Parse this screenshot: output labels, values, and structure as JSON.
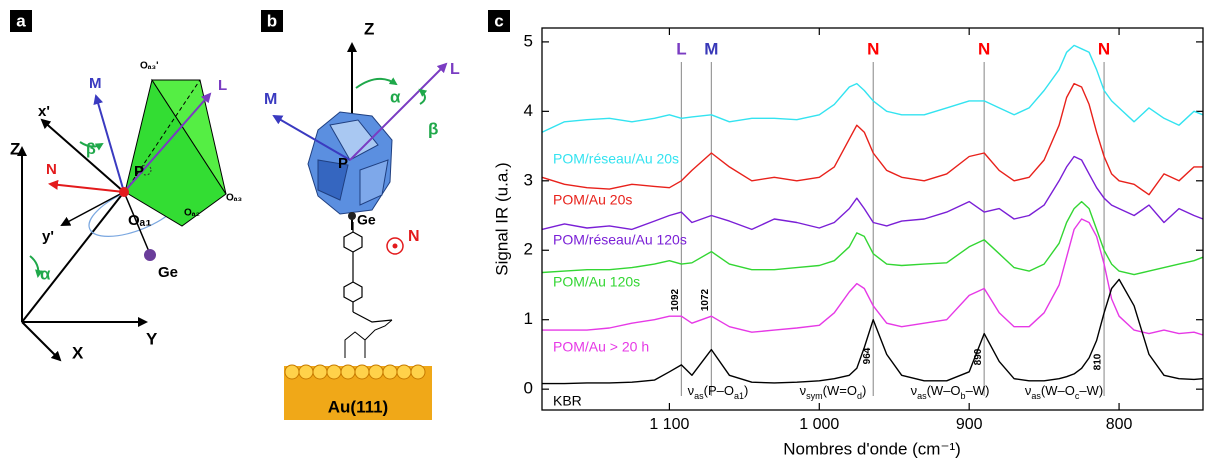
{
  "panel_labels": [
    "a",
    "b",
    "c"
  ],
  "diagram_a": [
    "x'",
    "M",
    "L",
    "Oₐ₃'",
    "β",
    "P",
    "Oₐ₃",
    "Oₐ₂",
    "Z",
    "N",
    "y'",
    "Oₐ₁",
    "α",
    "Ge",
    "Y",
    "X"
  ],
  "diagram_b": [
    "Z",
    "M",
    "α",
    "L",
    "β",
    "P",
    "Ge",
    "N",
    "Au(111)"
  ],
  "chart_data": {
    "type": "line",
    "xlabel": "Nombres d'onde (cm⁻¹)",
    "ylabel": "Signal IR (u.a.)",
    "xlim": [
      1185,
      744
    ],
    "ylim": [
      -0.3,
      5.2
    ],
    "xticks": [
      {
        "value": 1100,
        "label": "1 100"
      },
      {
        "value": 1000,
        "label": "1 000"
      },
      900,
      800
    ],
    "yticks": [
      0,
      1,
      2,
      3,
      4,
      5
    ],
    "x": [
      1185,
      1170,
      1155,
      1140,
      1125,
      1110,
      1100,
      1092,
      1085,
      1072,
      1060,
      1045,
      1030,
      1015,
      1000,
      990,
      980,
      975,
      970,
      964,
      955,
      945,
      930,
      915,
      900,
      890,
      880,
      870,
      860,
      850,
      840,
      835,
      830,
      825,
      820,
      815,
      810,
      805,
      800,
      790,
      780,
      770,
      760,
      750,
      744
    ],
    "series": [
      {
        "name": "POM/réseau/Au 20s",
        "color": "#33e3f0",
        "values": [
          3.7,
          3.85,
          3.88,
          3.9,
          3.85,
          3.9,
          3.95,
          3.9,
          3.92,
          3.95,
          3.85,
          3.9,
          3.9,
          3.88,
          3.95,
          4.1,
          4.35,
          4.4,
          4.3,
          4.15,
          4.0,
          3.95,
          3.95,
          4.05,
          4.15,
          4.15,
          4.05,
          3.95,
          4.05,
          4.3,
          4.6,
          4.85,
          4.95,
          4.9,
          4.85,
          4.6,
          4.3,
          4.15,
          4.05,
          3.85,
          4.05,
          3.9,
          3.8,
          4.0,
          3.95
        ]
      },
      {
        "name": "POM/Au 20s",
        "color": "#e8211b",
        "values": [
          3.05,
          2.95,
          2.9,
          2.88,
          2.95,
          2.92,
          2.9,
          3.0,
          3.15,
          3.4,
          3.2,
          3.0,
          3.05,
          3.0,
          3.05,
          3.2,
          3.6,
          3.8,
          3.7,
          3.4,
          3.15,
          3.05,
          3.0,
          3.1,
          3.35,
          3.4,
          3.15,
          3.0,
          3.05,
          3.3,
          3.8,
          4.2,
          4.4,
          4.35,
          4.1,
          3.7,
          3.35,
          3.1,
          3.0,
          2.95,
          2.8,
          3.1,
          3.0,
          3.2,
          3.2
        ]
      },
      {
        "name": "POM/réseau/Au 120s",
        "color": "#7a1fd6",
        "values": [
          2.3,
          2.38,
          2.32,
          2.35,
          2.3,
          2.42,
          2.5,
          2.55,
          2.4,
          2.5,
          2.42,
          2.3,
          2.45,
          2.4,
          2.32,
          2.4,
          2.6,
          2.75,
          2.6,
          2.4,
          2.35,
          2.42,
          2.45,
          2.55,
          2.7,
          2.55,
          2.6,
          2.45,
          2.5,
          2.65,
          3.0,
          3.2,
          3.35,
          3.3,
          3.1,
          2.9,
          2.75,
          2.65,
          2.6,
          2.5,
          2.65,
          2.4,
          2.6,
          2.5,
          2.45
        ]
      },
      {
        "name": "POM/Au 120s",
        "color": "#33d633",
        "values": [
          1.68,
          1.7,
          1.72,
          1.72,
          1.75,
          1.8,
          1.85,
          1.8,
          1.82,
          1.98,
          1.8,
          1.72,
          1.72,
          1.75,
          1.78,
          1.85,
          2.05,
          2.25,
          2.2,
          1.95,
          1.8,
          1.78,
          1.8,
          1.82,
          2.05,
          2.15,
          1.95,
          1.75,
          1.7,
          1.8,
          2.1,
          2.4,
          2.6,
          2.7,
          2.6,
          2.3,
          2.0,
          1.8,
          1.7,
          1.65,
          1.7,
          1.75,
          1.8,
          1.85,
          1.9
        ]
      },
      {
        "name": "POM/Au > 20 h",
        "color": "#e639e6",
        "values": [
          0.85,
          0.85,
          0.85,
          0.88,
          0.95,
          1.0,
          1.05,
          1.05,
          0.95,
          1.05,
          0.9,
          0.82,
          0.85,
          0.88,
          0.92,
          1.1,
          1.4,
          1.52,
          1.45,
          1.2,
          0.95,
          0.9,
          0.95,
          1.0,
          1.35,
          1.45,
          1.1,
          0.9,
          0.9,
          1.1,
          1.5,
          1.9,
          2.3,
          2.45,
          2.4,
          2.2,
          1.8,
          1.3,
          1.05,
          0.85,
          0.8,
          0.85,
          0.8,
          0.82,
          0.78
        ]
      },
      {
        "name": "KBR",
        "color": "#000000",
        "values": [
          0.08,
          0.08,
          0.09,
          0.09,
          0.1,
          0.13,
          0.25,
          0.35,
          0.2,
          0.57,
          0.2,
          0.1,
          0.09,
          0.1,
          0.12,
          0.15,
          0.2,
          0.3,
          0.6,
          1.0,
          0.5,
          0.2,
          0.12,
          0.12,
          0.25,
          0.8,
          0.4,
          0.15,
          0.12,
          0.12,
          0.15,
          0.18,
          0.22,
          0.3,
          0.45,
          0.7,
          1.1,
          1.45,
          1.58,
          1.2,
          0.5,
          0.2,
          0.15,
          0.14,
          0.15
        ]
      }
    ],
    "peaks": [
      {
        "letter": "L",
        "letter_color": "#7a3cc2",
        "x": 1092
      },
      {
        "letter": "M",
        "letter_color": "#3838b8",
        "x": 1072
      },
      {
        "letter": "N",
        "letter_color": "#ff0000",
        "x": 964
      },
      {
        "letter": "N",
        "letter_color": "#ff0000",
        "x": 890
      },
      {
        "letter": "N",
        "letter_color": "#ff0000",
        "x": 810
      }
    ],
    "band_labels": [
      [
        "ν",
        "as",
        "(P–O",
        "a1",
        ")"
      ],
      [
        "ν",
        "sym",
        "(W=O",
        "d",
        ")"
      ],
      [
        "ν",
        "as",
        "(W–O",
        "b",
        "–W)"
      ],
      [
        "ν",
        "as",
        "(W–O",
        "c",
        "–W)"
      ]
    ]
  }
}
